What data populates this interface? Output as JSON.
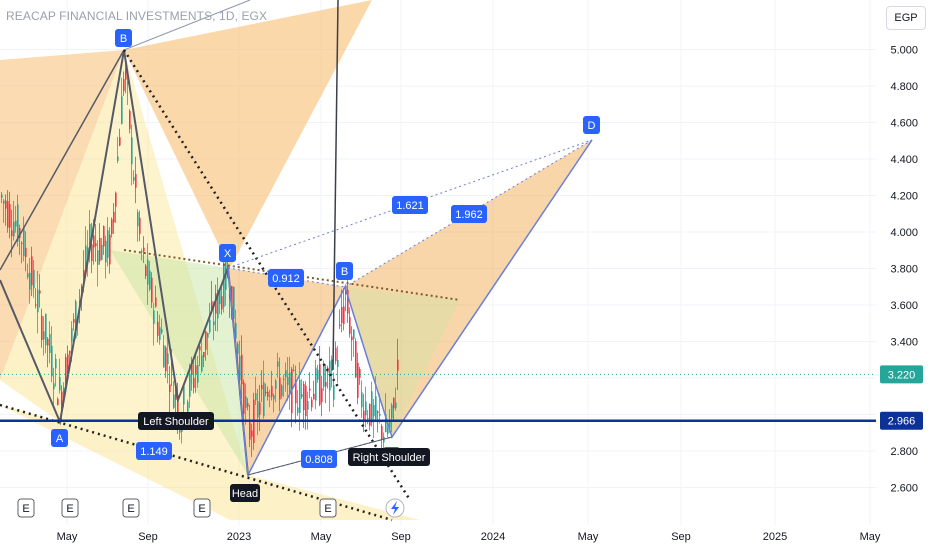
{
  "header": {
    "title": "REACAP FINANCIAL INVESTMENTS, 1D, EGX",
    "currency": "EGP"
  },
  "colors": {
    "up": "#26a69a",
    "down": "#f23645",
    "hline": "#0c3299",
    "label_blue": "#2962ff",
    "last_price": "#26a69a"
  },
  "chart_data": {
    "type": "candlestick",
    "symbol": "REACAP FINANCIAL INVESTMENTS",
    "interval": "1D",
    "exchange": "EGX",
    "currency": "EGP",
    "ylim": [
      2.45,
      5.25
    ],
    "y_ticks": [
      "5.000",
      "4.800",
      "4.600",
      "4.400",
      "4.200",
      "4.000",
      "3.800",
      "3.600",
      "3.400",
      "3.200",
      "3.000",
      "2.800",
      "2.600"
    ],
    "x_ticks": [
      "May",
      "Sep",
      "2023",
      "May",
      "Sep",
      "2024",
      "May",
      "Sep",
      "2025",
      "May"
    ],
    "price_markers": [
      {
        "label": "3.220",
        "value": 3.22,
        "style": "last"
      },
      {
        "label": "2.966",
        "value": 2.966,
        "style": "line"
      }
    ],
    "harmonic_points_prior": [
      {
        "label": "A",
        "value": 2.63
      },
      {
        "label": "B",
        "value": 5.0
      }
    ],
    "harmonic_points": [
      {
        "label": "X",
        "value": 3.8
      },
      {
        "label": "A",
        "value": 2.66
      },
      {
        "label": "B",
        "value": 3.72
      },
      {
        "label": "C",
        "value": 2.9
      },
      {
        "label": "D",
        "value": 4.52
      }
    ],
    "ratios": [
      "0.912",
      "1.621",
      "1.962",
      "0.808",
      "1.149"
    ],
    "pattern_labels": [
      "Left Shoulder",
      "Head",
      "Right Shoulder"
    ],
    "earnings_markers": [
      "E",
      "E",
      "E",
      "E",
      "E"
    ]
  }
}
